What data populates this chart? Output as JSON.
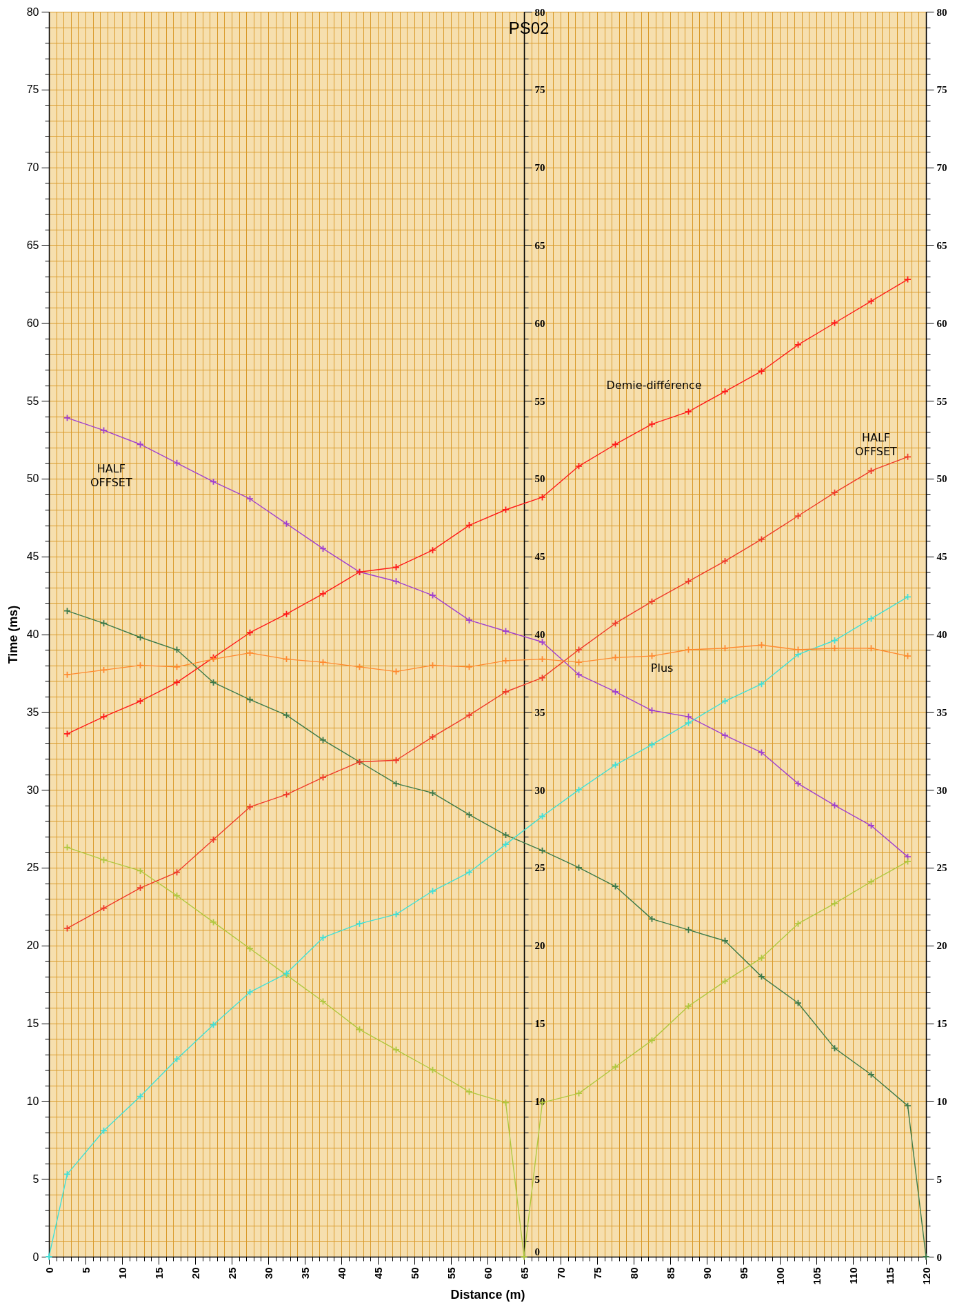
{
  "chart_data": {
    "type": "line",
    "title": "PS02",
    "xlabel": "Distance (m)",
    "ylabel": "Time (ms)",
    "xlim": [
      0,
      120
    ],
    "xticks": [
      0,
      {
        "value": 1,
        "label": null
      },
      {
        "value": 2,
        "label": null
      },
      {
        "value": 3,
        "label": null
      },
      {
        "value": 4,
        "label": null
      },
      5,
      {
        "value": 6,
        "label": null
      },
      {
        "value": 7,
        "label": null
      },
      {
        "value": 8,
        "label": null
      },
      {
        "value": 9,
        "label": null
      },
      10,
      {
        "value": 11,
        "label": null
      },
      {
        "value": 12,
        "label": null
      },
      {
        "value": 13,
        "label": null
      },
      {
        "value": 14,
        "label": null
      },
      15,
      {
        "value": 16,
        "label": null
      },
      {
        "value": 17,
        "label": null
      },
      {
        "value": 18,
        "label": null
      },
      {
        "value": 19,
        "label": null
      },
      20,
      {
        "value": 21,
        "label": null
      },
      {
        "value": 22,
        "label": null
      },
      {
        "value": 23,
        "label": null
      },
      {
        "value": 24,
        "label": null
      },
      25,
      {
        "value": 26,
        "label": null
      },
      {
        "value": 27,
        "label": null
      },
      {
        "value": 28,
        "label": null
      },
      {
        "value": 29,
        "label": null
      },
      30,
      {
        "value": 31,
        "label": null
      },
      {
        "value": 32,
        "label": null
      },
      {
        "value": 33,
        "label": null
      },
      {
        "value": 34,
        "label": null
      },
      35,
      {
        "value": 36,
        "label": null
      },
      {
        "value": 37,
        "label": null
      },
      {
        "value": 38,
        "label": null
      },
      {
        "value": 39,
        "label": null
      },
      40,
      {
        "value": 41,
        "label": null
      },
      {
        "value": 42,
        "label": null
      },
      {
        "value": 43,
        "label": null
      },
      {
        "value": 44,
        "label": null
      },
      45,
      {
        "value": 46,
        "label": null
      },
      {
        "value": 47,
        "label": null
      },
      {
        "value": 48,
        "label": null
      },
      {
        "value": 49,
        "label": null
      },
      50,
      {
        "value": 51,
        "label": null
      },
      {
        "value": 52,
        "label": null
      },
      {
        "value": 53,
        "label": null
      },
      {
        "value": 54,
        "label": null
      },
      55,
      {
        "value": 56,
        "label": null
      },
      {
        "value": 57,
        "label": null
      },
      {
        "value": 58,
        "label": null
      },
      {
        "value": 59,
        "label": null
      },
      60,
      {
        "value": 61,
        "label": null
      },
      {
        "value": 62,
        "label": null
      },
      {
        "value": 63,
        "label": null
      },
      {
        "value": 64,
        "label": null
      },
      65,
      {
        "value": 66,
        "label": null
      },
      {
        "value": 67,
        "label": null
      },
      {
        "value": 68,
        "label": null
      },
      {
        "value": 69,
        "label": null
      },
      70,
      {
        "value": 71,
        "label": null
      },
      {
        "value": 72,
        "label": null
      },
      {
        "value": 73,
        "label": null
      },
      {
        "value": 74,
        "label": null
      },
      75,
      {
        "value": 76,
        "label": null
      },
      {
        "value": 77,
        "label": null
      },
      {
        "value": 78,
        "label": null
      },
      {
        "value": 79,
        "label": null
      },
      80,
      {
        "value": 81,
        "label": null
      },
      {
        "value": 82,
        "label": null
      },
      {
        "value": 83,
        "label": null
      },
      {
        "value": 84,
        "label": null
      },
      85,
      {
        "value": 86,
        "label": null
      },
      {
        "value": 87,
        "label": null
      },
      {
        "value": 88,
        "label": null
      },
      {
        "value": 89,
        "label": null
      },
      90,
      {
        "value": 91,
        "label": null
      },
      {
        "value": 92,
        "label": null
      },
      {
        "value": 93,
        "label": null
      },
      {
        "value": 94,
        "label": null
      },
      95,
      {
        "value": 96,
        "label": null
      },
      {
        "value": 97,
        "label": null
      },
      {
        "value": 98,
        "label": null
      },
      {
        "value": 99,
        "label": null
      },
      100,
      {
        "value": 101,
        "label": null
      },
      {
        "value": 102,
        "label": null
      },
      {
        "value": 103,
        "label": null
      },
      {
        "value": 104,
        "label": null
      },
      105,
      {
        "value": 106,
        "label": null
      },
      {
        "value": 107,
        "label": null
      },
      {
        "value": 108,
        "label": null
      },
      {
        "value": 109,
        "label": null
      },
      110,
      {
        "value": 111,
        "label": null
      },
      {
        "value": 112,
        "label": null
      },
      {
        "value": 113,
        "label": null
      },
      {
        "value": 114,
        "label": null
      },
      115,
      {
        "value": 116,
        "label": null
      },
      {
        "value": 117,
        "label": null
      },
      {
        "value": 118,
        "label": null
      },
      {
        "value": 119,
        "label": null
      },
      120
    ],
    "ylim": [
      0,
      80
    ],
    "yticks": [
      0,
      {
        "value": 1,
        "label": null
      },
      {
        "value": 2,
        "label": null
      },
      {
        "value": 3,
        "label": null
      },
      {
        "value": 4,
        "label": null
      },
      5,
      {
        "value": 6,
        "label": null
      },
      {
        "value": 7,
        "label": null
      },
      {
        "value": 8,
        "label": null
      },
      {
        "value": 9,
        "label": null
      },
      10,
      {
        "value": 11,
        "label": null
      },
      {
        "value": 12,
        "label": null
      },
      {
        "value": 13,
        "label": null
      },
      {
        "value": 14,
        "label": null
      },
      15,
      {
        "value": 16,
        "label": null
      },
      {
        "value": 17,
        "label": null
      },
      {
        "value": 18,
        "label": null
      },
      {
        "value": 19,
        "label": null
      },
      20,
      {
        "value": 21,
        "label": null
      },
      {
        "value": 22,
        "label": null
      },
      {
        "value": 23,
        "label": null
      },
      {
        "value": 24,
        "label": null
      },
      25,
      {
        "value": 26,
        "label": null
      },
      {
        "value": 27,
        "label": null
      },
      {
        "value": 28,
        "label": null
      },
      {
        "value": 29,
        "label": null
      },
      30,
      {
        "value": 31,
        "label": null
      },
      {
        "value": 32,
        "label": null
      },
      {
        "value": 33,
        "label": null
      },
      {
        "value": 34,
        "label": null
      },
      35,
      {
        "value": 36,
        "label": null
      },
      {
        "value": 37,
        "label": null
      },
      {
        "value": 38,
        "label": null
      },
      {
        "value": 39,
        "label": null
      },
      40,
      {
        "value": 41,
        "label": null
      },
      {
        "value": 42,
        "label": null
      },
      {
        "value": 43,
        "label": null
      },
      {
        "value": 44,
        "label": null
      },
      45,
      {
        "value": 46,
        "label": null
      },
      {
        "value": 47,
        "label": null
      },
      {
        "value": 48,
        "label": null
      },
      {
        "value": 49,
        "label": null
      },
      50,
      {
        "value": 51,
        "label": null
      },
      {
        "value": 52,
        "label": null
      },
      {
        "value": 53,
        "label": null
      },
      {
        "value": 54,
        "label": null
      },
      55,
      {
        "value": 56,
        "label": null
      },
      {
        "value": 57,
        "label": null
      },
      {
        "value": 58,
        "label": null
      },
      {
        "value": 59,
        "label": null
      },
      60,
      {
        "value": 61,
        "label": null
      },
      {
        "value": 62,
        "label": null
      },
      {
        "value": 63,
        "label": null
      },
      {
        "value": 64,
        "label": null
      },
      65,
      {
        "value": 66,
        "label": null
      },
      {
        "value": 67,
        "label": null
      },
      {
        "value": 68,
        "label": null
      },
      {
        "value": 69,
        "label": null
      },
      70,
      {
        "value": 71,
        "label": null
      },
      {
        "value": 72,
        "label": null
      },
      {
        "value": 73,
        "label": null
      },
      {
        "value": 74,
        "label": null
      },
      75,
      {
        "value": 76,
        "label": null
      },
      {
        "value": 77,
        "label": null
      },
      {
        "value": 78,
        "label": null
      },
      {
        "value": 79,
        "label": null
      },
      80
    ],
    "y2lim": [
      0,
      80
    ],
    "y2ticks": [
      0,
      {
        "value": 1,
        "label": null
      },
      {
        "value": 2,
        "label": null
      },
      {
        "value": 3,
        "label": null
      },
      {
        "value": 4,
        "label": null
      },
      5,
      {
        "value": 6,
        "label": null
      },
      {
        "value": 7,
        "label": null
      },
      {
        "value": 8,
        "label": null
      },
      {
        "value": 9,
        "label": null
      },
      10,
      {
        "value": 11,
        "label": null
      },
      {
        "value": 12,
        "label": null
      },
      {
        "value": 13,
        "label": null
      },
      {
        "value": 14,
        "label": null
      },
      15,
      {
        "value": 16,
        "label": null
      },
      {
        "value": 17,
        "label": null
      },
      {
        "value": 18,
        "label": null
      },
      {
        "value": 19,
        "label": null
      },
      20,
      {
        "value": 21,
        "label": null
      },
      {
        "value": 22,
        "label": null
      },
      {
        "value": 23,
        "label": null
      },
      {
        "value": 24,
        "label": null
      },
      25,
      {
        "value": 26,
        "label": null
      },
      {
        "value": 27,
        "label": null
      },
      {
        "value": 28,
        "label": null
      },
      {
        "value": 29,
        "label": null
      },
      30,
      {
        "value": 31,
        "label": null
      },
      {
        "value": 32,
        "label": null
      },
      {
        "value": 33,
        "label": null
      },
      {
        "value": 34,
        "label": null
      },
      35,
      {
        "value": 36,
        "label": null
      },
      {
        "value": 37,
        "label": null
      },
      {
        "value": 38,
        "label": null
      },
      {
        "value": 39,
        "label": null
      },
      40,
      {
        "value": 41,
        "label": null
      },
      {
        "value": 42,
        "label": null
      },
      {
        "value": 43,
        "label": null
      },
      {
        "value": 44,
        "label": null
      },
      45,
      {
        "value": 46,
        "label": null
      },
      {
        "value": 47,
        "label": null
      },
      {
        "value": 48,
        "label": null
      },
      {
        "value": 49,
        "label": null
      },
      50,
      {
        "value": 51,
        "label": null
      },
      {
        "value": 52,
        "label": null
      },
      {
        "value": 53,
        "label": null
      },
      {
        "value": 54,
        "label": null
      },
      55,
      {
        "value": 56,
        "label": null
      },
      {
        "value": 57,
        "label": null
      },
      {
        "value": 58,
        "label": null
      },
      {
        "value": 59,
        "label": null
      },
      60,
      {
        "value": 61,
        "label": null
      },
      {
        "value": 62,
        "label": null
      },
      {
        "value": 63,
        "label": null
      },
      {
        "value": 64,
        "label": null
      },
      65,
      {
        "value": 66,
        "label": null
      },
      {
        "value": 67,
        "label": null
      },
      {
        "value": 68,
        "label": null
      },
      {
        "value": 69,
        "label": null
      },
      70,
      {
        "value": 71,
        "label": null
      },
      {
        "value": 72,
        "label": null
      },
      {
        "value": 73,
        "label": null
      },
      {
        "value": 74,
        "label": null
      },
      75,
      {
        "value": 76,
        "label": null
      },
      {
        "value": 77,
        "label": null
      },
      {
        "value": 78,
        "label": null
      },
      {
        "value": 79,
        "label": null
      },
      80
    ],
    "y3lim": [
      0,
      80
    ],
    "y3ticks": [
      0,
      {
        "value": 1,
        "label": null
      },
      {
        "value": 2,
        "label": null
      },
      {
        "value": 3,
        "label": null
      },
      {
        "value": 4,
        "label": null
      },
      5,
      {
        "value": 6,
        "label": null
      },
      {
        "value": 7,
        "label": null
      },
      {
        "value": 8,
        "label": null
      },
      {
        "value": 9,
        "label": null
      },
      10,
      {
        "value": 11,
        "label": null
      },
      {
        "value": 12,
        "label": null
      },
      {
        "value": 13,
        "label": null
      },
      {
        "value": 14,
        "label": null
      },
      15,
      {
        "value": 16,
        "label": null
      },
      {
        "value": 17,
        "label": null
      },
      {
        "value": 18,
        "label": null
      },
      {
        "value": 19,
        "label": null
      },
      20,
      {
        "value": 21,
        "label": null
      },
      {
        "value": 22,
        "label": null
      },
      {
        "value": 23,
        "label": null
      },
      {
        "value": 24,
        "label": null
      },
      25,
      {
        "value": 26,
        "label": null
      },
      {
        "value": 27,
        "label": null
      },
      {
        "value": 28,
        "label": null
      },
      {
        "value": 29,
        "label": null
      },
      30,
      {
        "value": 31,
        "label": null
      },
      {
        "value": 32,
        "label": null
      },
      {
        "value": 33,
        "label": null
      },
      {
        "value": 34,
        "label": null
      },
      35,
      {
        "value": 36,
        "label": null
      },
      {
        "value": 37,
        "label": null
      },
      {
        "value": 38,
        "label": null
      },
      {
        "value": 39,
        "label": null
      },
      40,
      {
        "value": 41,
        "label": null
      },
      {
        "value": 42,
        "label": null
      },
      {
        "value": 43,
        "label": null
      },
      {
        "value": 44,
        "label": null
      },
      45,
      {
        "value": 46,
        "label": null
      },
      {
        "value": 47,
        "label": null
      },
      {
        "value": 48,
        "label": null
      },
      {
        "value": 49,
        "label": null
      },
      50,
      {
        "value": 51,
        "label": null
      },
      {
        "value": 52,
        "label": null
      },
      {
        "value": 53,
        "label": null
      },
      {
        "value": 54,
        "label": null
      },
      55,
      {
        "value": 56,
        "label": null
      },
      {
        "value": 57,
        "label": null
      },
      {
        "value": 58,
        "label": null
      },
      {
        "value": 59,
        "label": null
      },
      60,
      {
        "value": 61,
        "label": null
      },
      {
        "value": 62,
        "label": null
      },
      {
        "value": 63,
        "label": null
      },
      {
        "value": 64,
        "label": null
      },
      65,
      {
        "value": 66,
        "label": null
      },
      {
        "value": 67,
        "label": null
      },
      {
        "value": 68,
        "label": null
      },
      {
        "value": 69,
        "label": null
      },
      70,
      {
        "value": 71,
        "label": null
      },
      {
        "value": 72,
        "label": null
      },
      {
        "value": 73,
        "label": null
      },
      {
        "value": 74,
        "label": null
      },
      75,
      {
        "value": 76,
        "label": null
      },
      {
        "value": 77,
        "label": null
      },
      {
        "value": 78,
        "label": null
      },
      {
        "value": 79,
        "label": null
      },
      80
    ],
    "grid": true,
    "legend": false,
    "marker": "cross",
    "line_style": "solid",
    "annotations": [
      "HALF OFFSET",
      "HALF OFFSET",
      "Demie-différence",
      "Plus"
    ],
    "series": [
      {
        "color": "#a040d0",
        "x": [
          2.5,
          7.5,
          12.5,
          17.5,
          22.5,
          27.5,
          32.5,
          37.5,
          42.5,
          47.5,
          52.5,
          57.5,
          62.5,
          67.5,
          72.5,
          77.5,
          82.5,
          87.5,
          92.5,
          97.5,
          102.5,
          107.5,
          112.5,
          117.5
        ],
        "values": [
          53.9,
          53.1,
          52.2,
          51.0,
          49.8,
          48.7,
          47.1,
          45.5,
          44.0,
          43.4,
          42.5,
          40.9,
          40.2,
          39.5,
          37.4,
          36.3,
          35.1,
          34.7,
          33.5,
          32.4,
          30.4,
          29.0,
          27.7,
          25.7
        ]
      },
      {
        "color": "#3c7a4a",
        "x": [
          2.5,
          7.5,
          12.5,
          17.5,
          22.5,
          27.5,
          32.5,
          37.5,
          42.5,
          47.5,
          52.5,
          57.5,
          62.5,
          67.5,
          72.5,
          77.5,
          82.5,
          87.5,
          92.5,
          97.5,
          102.5,
          107.5,
          112.5,
          117.5,
          120
        ],
        "values": [
          41.5,
          40.7,
          39.8,
          39.0,
          36.9,
          35.8,
          34.8,
          33.2,
          31.8,
          30.4,
          29.8,
          28.4,
          27.1,
          26.1,
          25.0,
          23.8,
          21.7,
          21.0,
          20.3,
          18.0,
          16.3,
          13.4,
          11.7,
          9.7,
          0
        ]
      },
      {
        "color": "#b0c840",
        "x": [
          2.5,
          7.5,
          12.5,
          17.5,
          22.5,
          27.5,
          32.5,
          37.5,
          42.5,
          47.5,
          52.5,
          57.5,
          62.5,
          65,
          67.5,
          72.5,
          77.5,
          82.5,
          87.5,
          92.5,
          97.5,
          102.5,
          107.5,
          112.5,
          117.5
        ],
        "values": [
          26.3,
          25.5,
          24.8,
          23.2,
          21.5,
          19.8,
          18.1,
          16.4,
          14.6,
          13.3,
          12.0,
          10.6,
          9.9,
          0,
          9.9,
          10.5,
          12.2,
          13.9,
          16.1,
          17.7,
          19.2,
          21.4,
          22.7,
          24.1,
          25.4
        ]
      },
      {
        "color": "#40e0d8",
        "x": [
          0,
          2.5,
          7.5,
          12.5,
          17.5,
          22.5,
          27.5,
          32.5,
          37.5,
          42.5,
          47.5,
          52.5,
          57.5,
          62.5,
          67.5,
          72.5,
          77.5,
          82.5,
          87.5,
          92.5,
          97.5,
          102.5,
          107.5,
          112.5,
          117.5
        ],
        "values": [
          0,
          5.3,
          8.1,
          10.3,
          12.7,
          14.9,
          17.0,
          18.2,
          20.5,
          21.4,
          22.0,
          23.5,
          24.7,
          26.5,
          28.3,
          30.0,
          31.6,
          32.9,
          34.3,
          35.7,
          36.8,
          38.7,
          39.6,
          41.0,
          42.4
        ]
      },
      {
        "color": "#f03a2a",
        "x": [
          2.5,
          7.5,
          12.5,
          17.5,
          22.5,
          27.5,
          32.5,
          37.5,
          42.5,
          47.5,
          52.5,
          57.5,
          62.5,
          67.5,
          72.5,
          77.5,
          82.5,
          87.5,
          92.5,
          97.5,
          102.5,
          107.5,
          112.5,
          117.5
        ],
        "values": [
          21.1,
          22.4,
          23.7,
          24.7,
          26.8,
          28.9,
          29.7,
          30.8,
          31.8,
          31.9,
          33.4,
          34.8,
          36.3,
          37.2,
          39.0,
          40.7,
          42.1,
          43.4,
          44.7,
          46.1,
          47.6,
          49.1,
          50.5,
          51.4
        ]
      },
      {
        "color": "#ff1a1a",
        "x": [
          2.5,
          7.5,
          12.5,
          17.5,
          22.5,
          27.5,
          32.5,
          37.5,
          42.5,
          47.5,
          52.5,
          57.5,
          62.5,
          67.5,
          72.5,
          77.5,
          82.5,
          87.5,
          92.5,
          97.5,
          102.5,
          107.5,
          112.5,
          117.5
        ],
        "values": [
          33.6,
          34.7,
          35.7,
          36.9,
          38.5,
          40.1,
          41.3,
          42.6,
          44.0,
          44.3,
          45.4,
          47.0,
          48.0,
          48.8,
          50.8,
          52.2,
          53.5,
          54.3,
          55.6,
          56.9,
          58.6,
          60.0,
          61.4,
          62.8
        ]
      },
      {
        "color": "#ff8a30",
        "x": [
          2.5,
          7.5,
          12.5,
          17.5,
          22.5,
          27.5,
          32.5,
          37.5,
          42.5,
          47.5,
          52.5,
          57.5,
          62.5,
          67.5,
          72.5,
          77.5,
          82.5,
          87.5,
          92.5,
          97.5,
          102.5,
          107.5,
          112.5,
          117.5
        ],
        "values": [
          37.4,
          37.7,
          38.0,
          37.9,
          38.4,
          38.8,
          38.4,
          38.2,
          37.9,
          37.6,
          38.0,
          37.9,
          38.3,
          38.4,
          38.2,
          38.5,
          38.6,
          39.0,
          39.1,
          39.3,
          39.0,
          39.1,
          39.1,
          38.6
        ]
      }
    ]
  }
}
